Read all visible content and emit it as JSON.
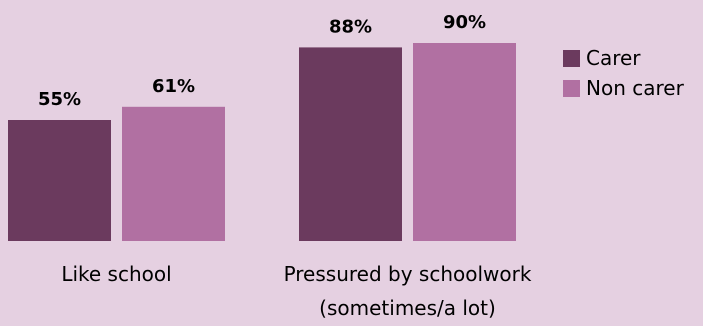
{
  "chart_data": {
    "type": "bar",
    "title": "",
    "xlabel": "",
    "ylabel": "",
    "ylim": [
      0,
      100
    ],
    "grid": false,
    "legend_position": "right",
    "categories": [
      "Like school",
      "Pressured by schoolwork (sometimes/a lot)"
    ],
    "category_lines": [
      [
        "Like school"
      ],
      [
        "Pressured by schoolwork",
        "(sometimes/a lot)"
      ]
    ],
    "series": [
      {
        "name": "Carer",
        "values": [
          55,
          88
        ],
        "labels": [
          "55%",
          "88%"
        ],
        "color": "#6b3a5e"
      },
      {
        "name": "Non carer",
        "values": [
          61,
          90
        ],
        "labels": [
          "61%",
          "90%"
        ],
        "color": "#b170a2"
      }
    ]
  },
  "colors": {
    "background": "#e5d0e1",
    "text": "#000000"
  }
}
